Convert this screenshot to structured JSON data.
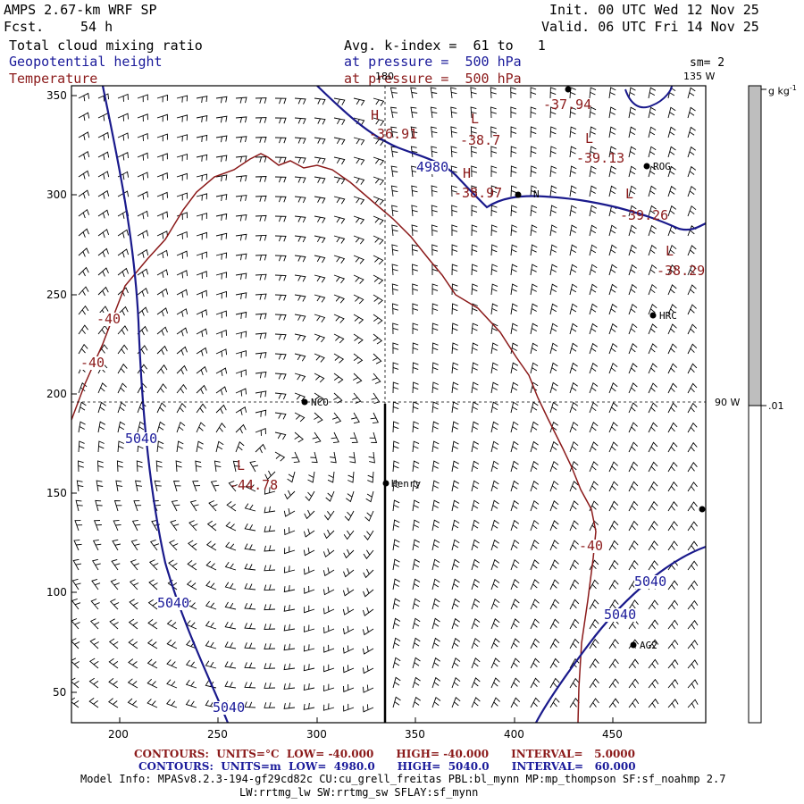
{
  "header": {
    "model": "AMPS 2.67-km WRF SP",
    "forecast_label": "Fcst.",
    "forecast": "54 h",
    "init": "Init. 00 UTC Wed 12 Nov 25",
    "valid": "Valid. 06 UTC Fri 14 Nov 25",
    "field1": "Total cloud mixing ratio",
    "field2": "Geopotential height",
    "field3": "Temperature",
    "avg": "Avg. k-index =  61 to   1",
    "pressure1": "at pressure =  500 hPa",
    "pressure2": "at pressure =  500 hPa",
    "smoothing": "sm= 2"
  },
  "colorbar": {
    "unit": "g kg",
    "unit_exp": "-1",
    "value_label": ".01",
    "fill_color": "#bebebe"
  },
  "map_labels": {
    "meridian_180": "180",
    "meridian_135w": "135 W",
    "meridian_90w": "90 W"
  },
  "axes": {
    "x_ticks": [
      "200",
      "250",
      "300",
      "350",
      "400",
      "450"
    ],
    "y_ticks": [
      "350",
      "300",
      "250",
      "200",
      "150",
      "100",
      "50"
    ]
  },
  "stations": [
    {
      "name": "NCO"
    },
    {
      "name": "Henry"
    },
    {
      "name": "ROG"
    },
    {
      "name": "HRC"
    },
    {
      "name": "AG2"
    },
    {
      "name": "N"
    }
  ],
  "contour_labels": {
    "height": [
      "5040",
      "5040",
      "5040",
      "5040",
      "5040",
      "4980"
    ],
    "temperature": [
      "-40",
      "-40",
      "-40"
    ]
  },
  "extrema": [
    {
      "type": "H",
      "value": "-36.91"
    },
    {
      "type": "L",
      "value": "-38.7"
    },
    {
      "type": "L",
      "value": "-39.13"
    },
    {
      "type": "H",
      "value": "-38.97"
    },
    {
      "type": "L",
      "value": "-39.26"
    },
    {
      "type": "L",
      "value": "-38.29"
    },
    {
      "type": "L",
      "value": "-44.78"
    },
    {
      "type": "",
      "value": "-37.94"
    }
  ],
  "footer": {
    "contours_temp": "CONTOURS:  UNITS=°C  LOW= -40.000      HIGH= -40.000      INTERVAL=   5.0000",
    "contours_height": "CONTOURS:  UNITS=m  LOW=  4980.0      HIGH=  5040.0      INTERVAL=   60.000",
    "model_info": "Model Info: MPASv8.2.3-194-gf29cd82c CU:cu_grell_freitas PBL:bl_mynn MP:mp_thompson SF:sf_noahmp 2.7",
    "model_info2": "LW:rrtmg_lw SW:rrtmg_sw SFLAY:sf_mynn"
  },
  "colors": {
    "height_contour": "#1a1a8c",
    "temperature_contour": "#8b1a1a"
  }
}
